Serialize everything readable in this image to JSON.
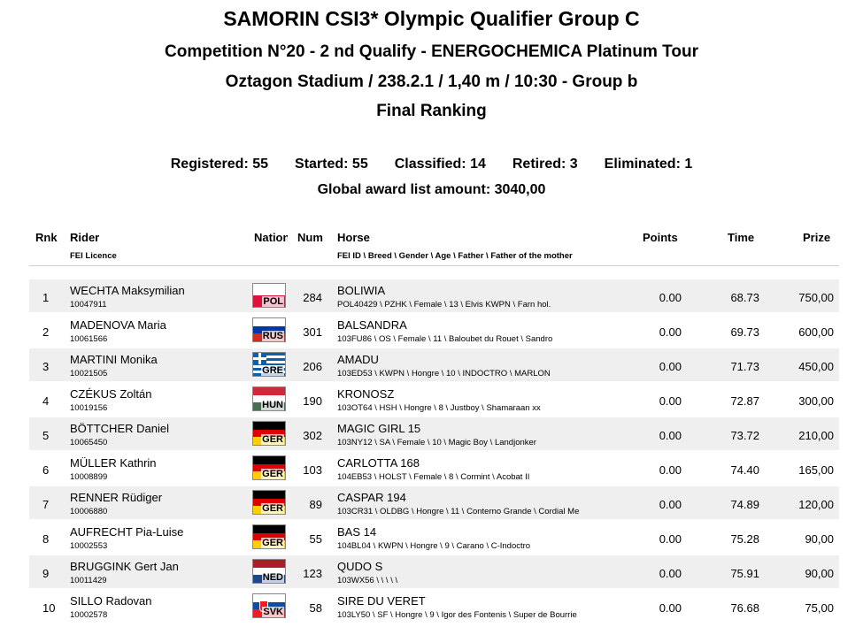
{
  "header": {
    "title": "SAMORIN CSI3* Olympic Qualifier Group C",
    "competition": "Competition N°20 - 2 nd Qualify  - ENERGOCHEMICA Platinum Tour",
    "venue": "Oztagon Stadium / 238.2.1 / 1,40 m / 10:30 - Group b",
    "ranking_title": "Final Ranking"
  },
  "stats": {
    "registered": "Registered: 55",
    "started": "Started: 55",
    "classified": "Classified: 14",
    "retired": "Retired: 3",
    "eliminated": "Eliminated: 1",
    "award": "Global award list amount: 3040,00"
  },
  "columns": {
    "rnk": "Rnk",
    "rider": "Rider",
    "rider_sub": "FEI Licence",
    "nation": "Nation",
    "num": "Num",
    "horse": "Horse",
    "horse_sub": "FEI ID \\ Breed \\ Gender \\ Age \\ Father \\ Father of the mother",
    "points": "Points",
    "time": "Time",
    "prize": "Prize"
  },
  "flags": {
    "POL": {
      "stripes": [
        "#ffffff",
        "#dc143c"
      ]
    },
    "RUS": {
      "stripes": [
        "#ffffff",
        "#0039a6",
        "#d52b1e"
      ]
    },
    "GRE": {
      "stripes": [
        "#0d5eaf",
        "#ffffff",
        "#0d5eaf",
        "#ffffff",
        "#0d5eaf",
        "#ffffff",
        "#0d5eaf",
        "#ffffff",
        "#0d5eaf"
      ],
      "cross": true
    },
    "HUN": {
      "stripes": [
        "#ce2939",
        "#ffffff",
        "#477050"
      ]
    },
    "GER": {
      "stripes": [
        "#000000",
        "#dd0000",
        "#ffce00"
      ]
    },
    "NED": {
      "stripes": [
        "#ae1c28",
        "#ffffff",
        "#21468b"
      ]
    },
    "SVK": {
      "stripes": [
        "#ffffff",
        "#0b4ea2",
        "#ee1c25"
      ],
      "shield": true
    }
  },
  "rows": [
    {
      "rnk": "1",
      "name": "WECHTA Maksymilian",
      "licence": "10047911",
      "nation": "POL",
      "num": "284",
      "horse": "BOLIWIA",
      "horse_details": "POL40429 \\ PZHK \\ Female \\ 13 \\ Elvis KWPN \\ Farn hol.",
      "points": "0.00",
      "time": "68.73",
      "prize": "750,00"
    },
    {
      "rnk": "2",
      "name": "MADENOVA Maria",
      "licence": "10061566",
      "nation": "RUS",
      "num": "301",
      "horse": "BALSANDRA",
      "horse_details": "103FU86 \\ OS \\ Female \\ 11 \\ Baloubet du Rouet \\ Sandro",
      "points": "0.00",
      "time": "69.73",
      "prize": "600,00"
    },
    {
      "rnk": "3",
      "name": "MARTINI Monika",
      "licence": "10021505",
      "nation": "GRE",
      "num": "206",
      "horse": "AMADU",
      "horse_details": "103ED53 \\ KWPN \\ Hongre \\ 10 \\ INDOCTRO \\ MARLON",
      "points": "0.00",
      "time": "71.73",
      "prize": "450,00"
    },
    {
      "rnk": "4",
      "name": "CZÉKUS Zoltán",
      "licence": "10019156",
      "nation": "HUN",
      "num": "190",
      "horse": "KRONOSZ",
      "horse_details": "103OT64 \\ HSH \\ Hongre \\ 8 \\ Justboy \\ Shamaraan xx",
      "points": "0.00",
      "time": "72.87",
      "prize": "300,00"
    },
    {
      "rnk": "5",
      "name": "BÖTTCHER Daniel",
      "licence": "10065450",
      "nation": "GER",
      "num": "302",
      "horse": "MAGIC GIRL 15",
      "horse_details": "103NY12 \\ SA \\ Female \\ 10 \\ Magic Boy \\ Landjonker",
      "points": "0.00",
      "time": "73.72",
      "prize": "210,00"
    },
    {
      "rnk": "6",
      "name": "MÜLLER Kathrin",
      "licence": "10008899",
      "nation": "GER",
      "num": "103",
      "horse": "CARLOTTA 168",
      "horse_details": "104EB53 \\ HOLST \\ Female \\ 8 \\ Cormint \\ Acobat II",
      "points": "0.00",
      "time": "74.40",
      "prize": "165,00"
    },
    {
      "rnk": "7",
      "name": "RENNER Rüdiger",
      "licence": "10006880",
      "nation": "GER",
      "num": "89",
      "horse": "CASPAR 194",
      "horse_details": "103CR31 \\ OLDBG \\ Hongre \\ 11 \\ Conterno Grande \\ Cordial Me",
      "points": "0.00",
      "time": "74.89",
      "prize": "120,00"
    },
    {
      "rnk": "8",
      "name": "AUFRECHT Pia-Luise",
      "licence": "10002553",
      "nation": "GER",
      "num": "55",
      "horse": "BAS 14",
      "horse_details": "104BL04 \\ KWPN \\ Hongre \\ 9 \\ Carano \\ C-Indoctro",
      "points": "0.00",
      "time": "75.28",
      "prize": "90,00"
    },
    {
      "rnk": "9",
      "name": "BRUGGINK Gert Jan",
      "licence": "10011429",
      "nation": "NED",
      "num": "123",
      "horse": "QUDO S",
      "horse_details": "103WX56 \\ \\ \\ \\ \\",
      "points": "0.00",
      "time": "75.91",
      "prize": "90,00"
    },
    {
      "rnk": "10",
      "name": "SILLO Radovan",
      "licence": "10002578",
      "nation": "SVK",
      "num": "58",
      "horse": "SIRE DU VERET",
      "horse_details": "103LY50 \\ SF \\ Hongre \\ 9 \\ Igor des Fontenis \\ Super de Bourrie",
      "points": "0.00",
      "time": "76.68",
      "prize": "75,00"
    }
  ]
}
